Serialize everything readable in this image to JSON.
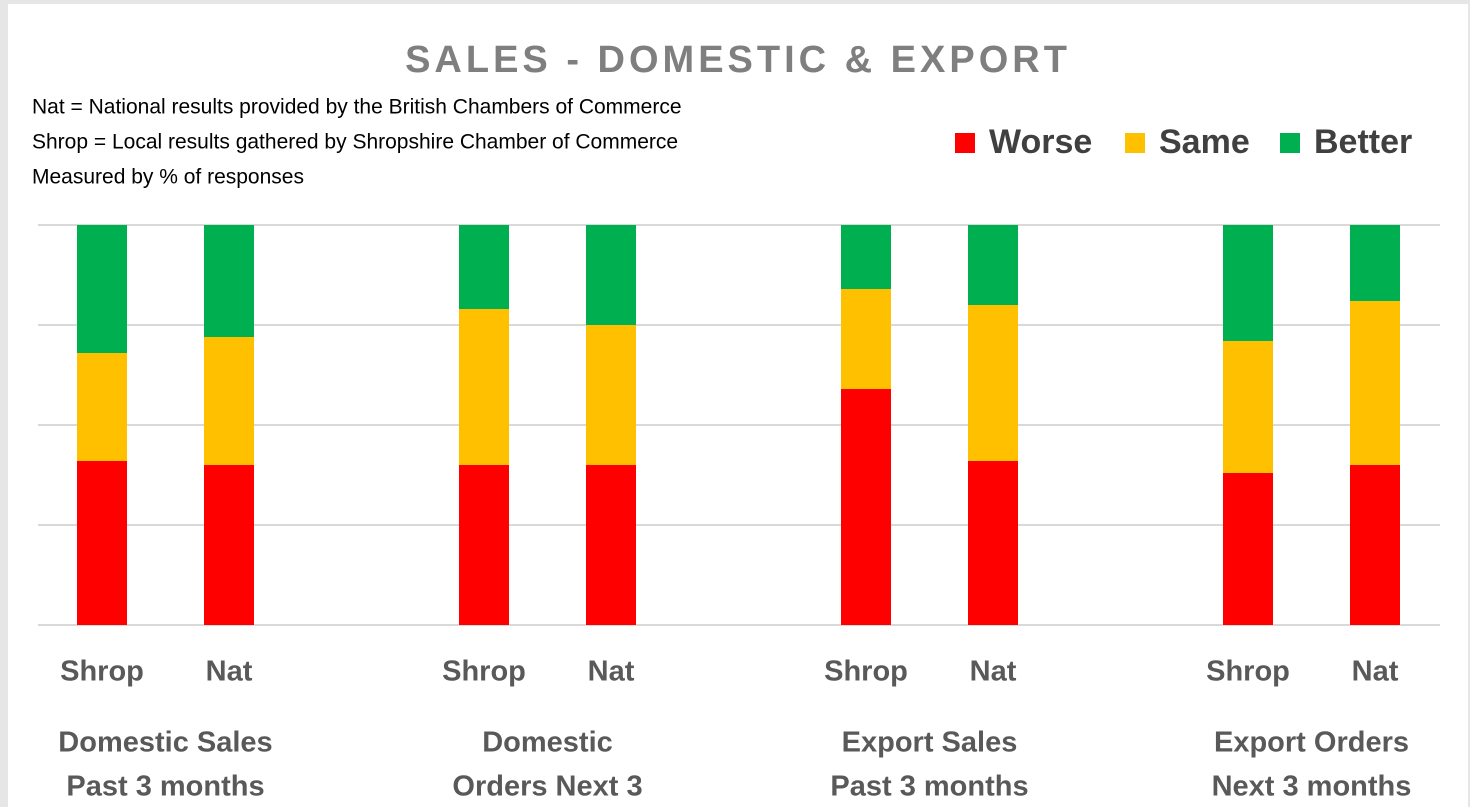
{
  "chart_data": {
    "type": "stacked_bar",
    "title": "SALES - DOMESTIC & EXPORT",
    "notes": [
      "Nat = National results provided by the British Chambers of Commerce",
      "Shrop = Local results gathered by Shropshire Chamber of Commerce",
      "Measured by % of responses"
    ],
    "categories": [
      "Shrop",
      "Nat",
      "Shrop",
      "Nat",
      "Shrop",
      "Nat",
      "Shrop",
      "Nat"
    ],
    "groups": [
      [
        "Domestic Sales",
        "Past 3 months"
      ],
      [
        "Domestic",
        "Orders  Next 3"
      ],
      [
        "Export Sales",
        "Past 3 months"
      ],
      [
        "Export Orders",
        "Next 3 months"
      ]
    ],
    "series": [
      {
        "name": "Worse",
        "color": "#ff0000",
        "values": [
          41,
          40,
          40,
          40,
          59,
          41,
          38,
          40
        ]
      },
      {
        "name": "Same",
        "color": "#ffc000",
        "values": [
          27,
          32,
          39,
          35,
          25,
          39,
          33,
          41
        ]
      },
      {
        "name": "Better",
        "color": "#00b050",
        "values": [
          32,
          28,
          21,
          25,
          16,
          20,
          29,
          19
        ]
      }
    ],
    "ylim": [
      0,
      100
    ],
    "yticks": [
      0,
      25,
      50,
      75,
      100
    ],
    "grid": true,
    "legend": "top-right"
  }
}
